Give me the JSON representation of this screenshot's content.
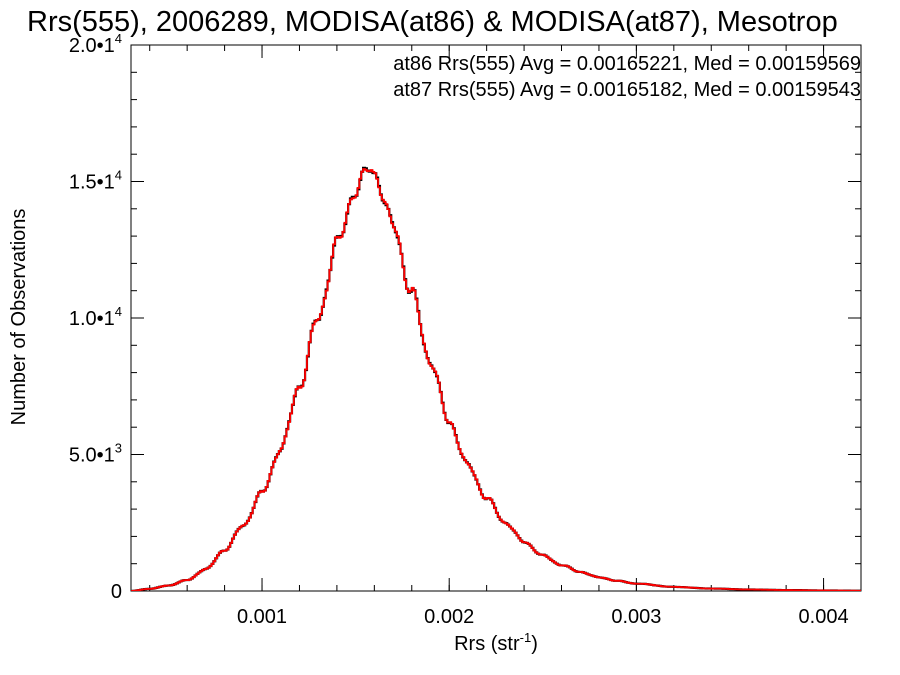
{
  "chart_data": {
    "type": "line",
    "title": "Rrs(555), 2006289, MODISA(at86) & MODISA(at87), Mesotrop",
    "xlabel": {
      "base": "Rrs (str",
      "sup": "-1",
      "close": ")"
    },
    "ylabel": "Number of Observations",
    "xlim": [
      0.0003,
      0.0042
    ],
    "ylim": [
      0,
      20000
    ],
    "x_ticks": [
      {
        "value": 0.001,
        "label": "0.001"
      },
      {
        "value": 0.002,
        "label": "0.002"
      },
      {
        "value": 0.003,
        "label": "0.003"
      },
      {
        "value": 0.004,
        "label": "0.004"
      }
    ],
    "y_ticks": [
      {
        "value": 0,
        "mant": "0",
        "exp": ""
      },
      {
        "value": 5000,
        "mant": "5.0•1",
        "exp": "3"
      },
      {
        "value": 10000,
        "mant": "1.0•1",
        "exp": "4"
      },
      {
        "value": 15000,
        "mant": "1.5•1",
        "exp": "4"
      },
      {
        "value": 20000,
        "mant": "2.0•1",
        "exp": "4"
      }
    ],
    "x_minor_step": 0.0002,
    "y_minor_step": 1000,
    "grid": false,
    "legend_position": "top-right",
    "series": [
      {
        "name": "at86",
        "label": "at86 Rrs(555) Avg = 0.00165221, Med = 0.00159569",
        "color": "#000000",
        "x": [
          0.0003,
          0.0004,
          0.0005,
          0.0006,
          0.0007,
          0.0008,
          0.0009,
          0.001,
          0.0011,
          0.0012,
          0.0013,
          0.0014,
          0.0015,
          0.00158,
          0.0016,
          0.0017,
          0.0018,
          0.0019,
          0.002,
          0.0021,
          0.0022,
          0.0023,
          0.0024,
          0.0025,
          0.0026,
          0.0027,
          0.0028,
          0.0029,
          0.003,
          0.0032,
          0.0034,
          0.0036,
          0.0038,
          0.004,
          0.0042
        ],
        "y": [
          0,
          80,
          200,
          400,
          800,
          1500,
          2400,
          3600,
          5200,
          7500,
          10000,
          12700,
          14700,
          15500,
          15300,
          13400,
          10900,
          8400,
          6200,
          4600,
          3400,
          2500,
          1800,
          1300,
          950,
          700,
          500,
          370,
          270,
          150,
          90,
          55,
          35,
          20,
          10
        ]
      },
      {
        "name": "at87",
        "label": "at87 Rrs(555) Avg = 0.00165182, Med = 0.00159543",
        "color": "#ff0000",
        "x": [
          0.0003,
          0.0004,
          0.0005,
          0.0006,
          0.0007,
          0.0008,
          0.0009,
          0.001,
          0.0011,
          0.0012,
          0.0013,
          0.0014,
          0.0015,
          0.00158,
          0.0016,
          0.0017,
          0.0018,
          0.0019,
          0.002,
          0.0021,
          0.0022,
          0.0023,
          0.0024,
          0.0025,
          0.0026,
          0.0027,
          0.0028,
          0.0029,
          0.003,
          0.0032,
          0.0034,
          0.0036,
          0.0038,
          0.004,
          0.0042
        ],
        "y": [
          0,
          80,
          200,
          400,
          800,
          1500,
          2400,
          3600,
          5200,
          7500,
          10000,
          12700,
          14700,
          15500,
          15300,
          13400,
          10900,
          8400,
          6200,
          4600,
          3400,
          2500,
          1800,
          1300,
          950,
          700,
          500,
          370,
          270,
          150,
          90,
          55,
          35,
          20,
          10
        ]
      }
    ]
  }
}
